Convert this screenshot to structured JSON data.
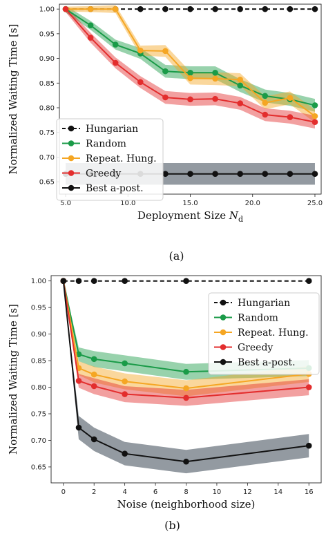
{
  "colors": {
    "hungarian": "#111111",
    "random": "#1a9b48",
    "repeat": "#f5a623",
    "greedy": "#e32d2d",
    "best": "#111111",
    "best_band": "#808890"
  },
  "chart_data": [
    {
      "type": "line",
      "caption": "(a)",
      "xlabel_main": "Deployment Size ",
      "xlabel_math": "N",
      "xlabel_sub": "d",
      "ylabel": "Normalized Waiting Time [s]",
      "xlim": [
        4.5,
        25.5
      ],
      "ylim": [
        0.625,
        1.01
      ],
      "xticks": [
        5,
        10,
        15,
        20,
        25
      ],
      "xtick_labels": [
        "5.0",
        "10.0",
        "15.0",
        "20.0",
        "25.0"
      ],
      "yticks": [
        0.65,
        0.7,
        0.75,
        0.8,
        0.85,
        0.9,
        0.95,
        1.0
      ],
      "ytick_labels": [
        "0.65",
        "0.70",
        "0.75",
        "0.80",
        "0.85",
        "0.90",
        "0.95",
        "1.00"
      ],
      "legend_position": "lower-left",
      "x": [
        5,
        7,
        9,
        11,
        13,
        15,
        17,
        19,
        21,
        23,
        25
      ],
      "series": [
        {
          "key": "hungarian",
          "name": "Hungarian",
          "dashed": true,
          "values": [
            1.0,
            1.0,
            1.0,
            1.0,
            1.0,
            1.0,
            1.0,
            1.0,
            1.0,
            1.0,
            1.0
          ]
        },
        {
          "key": "random",
          "name": "Random",
          "values": [
            1.0,
            0.967,
            0.928,
            0.91,
            0.874,
            0.871,
            0.871,
            0.845,
            0.824,
            0.817,
            0.805
          ],
          "band": [
            0.007,
            0.009,
            0.01,
            0.011,
            0.013,
            0.013,
            0.013,
            0.013,
            0.013,
            0.013,
            0.013
          ]
        },
        {
          "key": "repeat",
          "name": "Repeat. Hung.",
          "values": [
            1.0,
            1.0,
            1.0,
            0.916,
            0.915,
            0.86,
            0.859,
            0.857,
            0.81,
            0.82,
            0.783
          ],
          "band": [
            0.005,
            0.006,
            0.008,
            0.01,
            0.012,
            0.013,
            0.013,
            0.013,
            0.013,
            0.013,
            0.013
          ]
        },
        {
          "key": "greedy",
          "name": "Greedy",
          "values": [
            1.0,
            0.942,
            0.891,
            0.852,
            0.821,
            0.817,
            0.818,
            0.809,
            0.786,
            0.781,
            0.771
          ],
          "band": [
            0.006,
            0.01,
            0.011,
            0.012,
            0.013,
            0.013,
            0.013,
            0.013,
            0.013,
            0.013,
            0.013
          ]
        },
        {
          "key": "best",
          "name": "Best a-post.",
          "values": [
            0.666,
            0.666,
            0.666,
            0.666,
            0.666,
            0.666,
            0.666,
            0.666,
            0.666,
            0.666,
            0.666
          ],
          "band": [
            0.022,
            0.022,
            0.022,
            0.022,
            0.022,
            0.022,
            0.022,
            0.022,
            0.022,
            0.022,
            0.022
          ]
        }
      ]
    },
    {
      "type": "line",
      "caption": "(b)",
      "xlabel_main": "Noise (neighborhood size)",
      "xlabel_math": "",
      "xlabel_sub": "",
      "ylabel": "Normalized Waiting Time [s]",
      "xlim": [
        -0.8,
        16.8
      ],
      "ylim": [
        0.62,
        1.01
      ],
      "xticks": [
        0,
        2,
        4,
        6,
        8,
        10,
        12,
        14,
        16
      ],
      "xtick_labels": [
        "0",
        "2",
        "4",
        "6",
        "8",
        "10",
        "12",
        "14",
        "16"
      ],
      "yticks": [
        0.65,
        0.7,
        0.75,
        0.8,
        0.85,
        0.9,
        0.95,
        1.0
      ],
      "ytick_labels": [
        "0.65",
        "0.70",
        "0.75",
        "0.80",
        "0.85",
        "0.90",
        "0.95",
        "1.00"
      ],
      "legend_position": "upper-right",
      "x": [
        0,
        1,
        2,
        4,
        8,
        16
      ],
      "series": [
        {
          "key": "hungarian",
          "name": "Hungarian",
          "dashed": true,
          "values": [
            1.0,
            1.0,
            1.0,
            1.0,
            1.0,
            1.0
          ]
        },
        {
          "key": "random",
          "name": "Random",
          "values": [
            1.0,
            0.862,
            0.853,
            0.845,
            0.829,
            0.836
          ],
          "band": [
            0.0,
            0.013,
            0.015,
            0.015,
            0.015,
            0.015
          ]
        },
        {
          "key": "repeat",
          "name": "Repeat. Hung.",
          "values": [
            1.0,
            0.836,
            0.824,
            0.811,
            0.798,
            0.825
          ],
          "band": [
            0.0,
            0.013,
            0.015,
            0.015,
            0.015,
            0.015
          ]
        },
        {
          "key": "greedy",
          "name": "Greedy",
          "values": [
            1.0,
            0.812,
            0.802,
            0.787,
            0.78,
            0.8
          ],
          "band": [
            0.0,
            0.013,
            0.015,
            0.015,
            0.015,
            0.015
          ]
        },
        {
          "key": "best",
          "name": "Best a-post.",
          "values": [
            1.0,
            0.724,
            0.702,
            0.675,
            0.66,
            0.69
          ],
          "band": [
            0.0,
            0.022,
            0.022,
            0.022,
            0.022,
            0.022
          ]
        }
      ]
    }
  ]
}
